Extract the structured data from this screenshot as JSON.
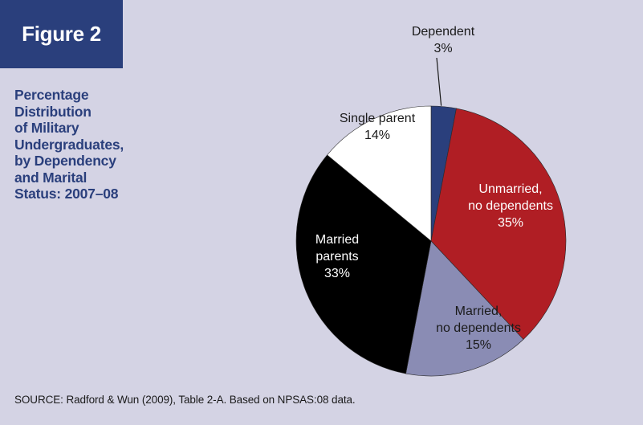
{
  "figure_label": "Figure 2",
  "title": "Percentage\nDistribution\nof Military\nUndergraduates,\nby Dependency\nand Marital\nStatus: 2007–08",
  "source": "SOURCE: Radford & Wun (2009), Table 2-A. Based on NPSAS:08 data.",
  "colors": {
    "panel_background": "#d4d3e4",
    "accent_navy": "#2a3f7c"
  },
  "chart_data": {
    "type": "pie",
    "title": "Percentage Distribution of Military Undergraduates, by Dependency and Marital Status: 2007–08",
    "slices": [
      {
        "name": "Dependent",
        "label_lines": [
          "Dependent",
          "3%"
        ],
        "value": 3,
        "color": "#2a3f7c",
        "label_color": "#1a1a1a"
      },
      {
        "name": "Unmarried, no dependents",
        "label_lines": [
          "Unmarried,",
          "no dependents",
          "35%"
        ],
        "value": 35,
        "color": "#b01e24",
        "label_color": "#ffffff"
      },
      {
        "name": "Married, no dependents",
        "label_lines": [
          "Married,",
          "no dependents",
          "15%"
        ],
        "value": 15,
        "color": "#8a8cb4",
        "label_color": "#1a1a1a"
      },
      {
        "name": "Married parents",
        "label_lines": [
          "Married",
          "parents",
          "33%"
        ],
        "value": 33,
        "color": "#000000",
        "label_color": "#ffffff"
      },
      {
        "name": "Single parent",
        "label_lines": [
          "Single parent",
          "14%"
        ],
        "value": 14,
        "color": "#ffffff",
        "label_color": "#1a1a1a"
      }
    ],
    "start_angle": "12 o'clock",
    "direction": "clockwise"
  }
}
